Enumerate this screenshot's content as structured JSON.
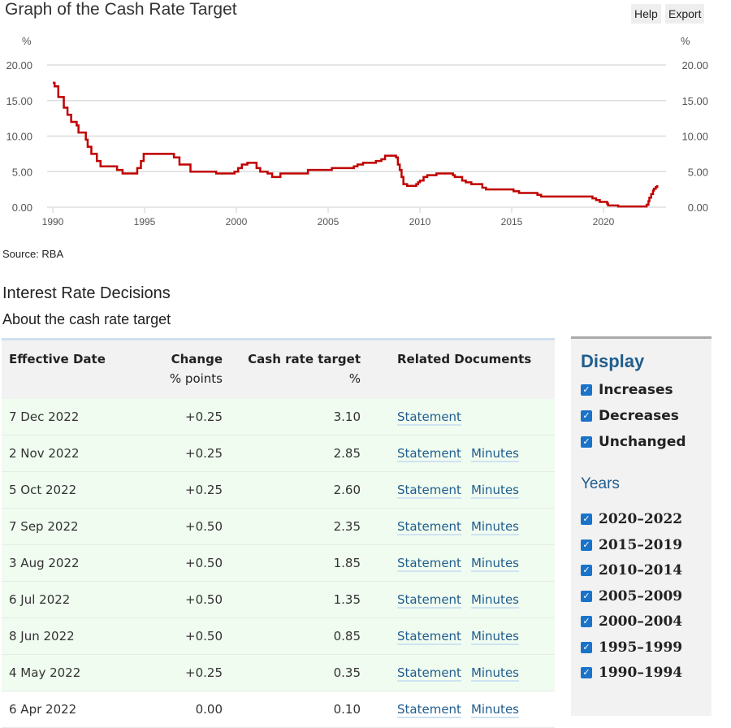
{
  "header": {
    "title": "Graph of the Cash Rate Target",
    "help": "Help",
    "export": "Export"
  },
  "chart_data": {
    "type": "line",
    "title": "Graph of the Cash Rate Target",
    "ylabel_left": "%",
    "ylabel_right": "%",
    "ylim": [
      0,
      20
    ],
    "yticks": [
      "0.00",
      "5.00",
      "10.00",
      "15.00",
      "20.00"
    ],
    "xticks": [
      "1990",
      "1995",
      "2000",
      "2005",
      "2010",
      "2015",
      "2020"
    ],
    "xlim": [
      1990,
      2023
    ],
    "color": "#c00000",
    "grid": "horizontal",
    "step": true,
    "x": [
      1990.0,
      1990.1,
      1990.3,
      1990.6,
      1990.8,
      1991.0,
      1991.3,
      1991.4,
      1991.8,
      1991.9,
      1992.1,
      1992.4,
      1992.6,
      1993.5,
      1993.8,
      1994.6,
      1994.8,
      1994.95,
      1996.6,
      1996.9,
      1997.5,
      1998.9,
      1999.9,
      2000.1,
      2000.3,
      2000.6,
      2001.1,
      2001.3,
      2001.7,
      2001.95,
      2002.4,
      2003.9,
      2005.2,
      2006.4,
      2006.6,
      2006.9,
      2007.6,
      2007.9,
      2008.1,
      2008.7,
      2008.8,
      2008.9,
      2009.0,
      2009.1,
      2009.3,
      2009.8,
      2009.9,
      2010.0,
      2010.2,
      2010.4,
      2010.9,
      2011.8,
      2011.9,
      2012.3,
      2012.5,
      2012.8,
      2013.4,
      2013.6,
      2015.1,
      2015.4,
      2016.4,
      2016.6,
      2019.4,
      2019.6,
      2019.8,
      2020.2,
      2020.25,
      2020.8,
      2022.35,
      2022.45,
      2022.5,
      2022.6,
      2022.7,
      2022.75,
      2022.85,
      2022.93
    ],
    "y": [
      17.5,
      17.0,
      15.5,
      14.0,
      13.0,
      12.0,
      11.5,
      10.5,
      9.5,
      8.5,
      7.5,
      6.5,
      5.75,
      5.25,
      4.75,
      5.5,
      6.5,
      7.5,
      7.0,
      6.0,
      5.0,
      4.75,
      5.0,
      5.5,
      6.0,
      6.25,
      5.5,
      5.0,
      4.75,
      4.25,
      4.75,
      5.25,
      5.5,
      5.75,
      6.0,
      6.25,
      6.5,
      6.75,
      7.25,
      7.0,
      6.0,
      5.25,
      4.25,
      3.25,
      3.0,
      3.25,
      3.5,
      3.75,
      4.25,
      4.5,
      4.75,
      4.5,
      4.25,
      3.75,
      3.5,
      3.25,
      2.75,
      2.5,
      2.25,
      2.0,
      1.75,
      1.5,
      1.25,
      1.0,
      0.75,
      0.5,
      0.25,
      0.1,
      0.35,
      0.85,
      1.35,
      1.85,
      2.35,
      2.6,
      2.85,
      3.1
    ]
  },
  "source": "Source: RBA",
  "section_title": "Interest Rate Decisions",
  "about_link": "About the cash rate target",
  "table": {
    "headers": {
      "date": "Effective Date",
      "change": "Change",
      "change_unit": "% points",
      "rate": "Cash rate target",
      "rate_unit": "%",
      "docs": "Related Documents"
    },
    "rows": [
      {
        "date": "7 Dec 2022",
        "change": "+0.25",
        "rate": "3.10",
        "statement": "Statement",
        "minutes": "",
        "type": "inc"
      },
      {
        "date": "2 Nov 2022",
        "change": "+0.25",
        "rate": "2.85",
        "statement": "Statement",
        "minutes": "Minutes",
        "type": "inc"
      },
      {
        "date": "5 Oct 2022",
        "change": "+0.25",
        "rate": "2.60",
        "statement": "Statement",
        "minutes": "Minutes",
        "type": "inc"
      },
      {
        "date": "7 Sep 2022",
        "change": "+0.50",
        "rate": "2.35",
        "statement": "Statement",
        "minutes": "Minutes",
        "type": "inc"
      },
      {
        "date": "3 Aug 2022",
        "change": "+0.50",
        "rate": "1.85",
        "statement": "Statement",
        "minutes": "Minutes",
        "type": "inc"
      },
      {
        "date": "6 Jul 2022",
        "change": "+0.50",
        "rate": "1.35",
        "statement": "Statement",
        "minutes": "Minutes",
        "type": "inc"
      },
      {
        "date": "8 Jun 2022",
        "change": "+0.50",
        "rate": "0.85",
        "statement": "Statement",
        "minutes": "Minutes",
        "type": "inc"
      },
      {
        "date": "4 May 2022",
        "change": "+0.25",
        "rate": "0.35",
        "statement": "Statement",
        "minutes": "Minutes",
        "type": "inc"
      },
      {
        "date": "6 Apr 2022",
        "change": "0.00",
        "rate": "0.10",
        "statement": "Statement",
        "minutes": "Minutes",
        "type": "unch"
      }
    ]
  },
  "sidebar": {
    "display_title": "Display",
    "display": [
      {
        "label": "Increases",
        "checked": true
      },
      {
        "label": "Decreases",
        "checked": true
      },
      {
        "label": "Unchanged",
        "checked": true
      }
    ],
    "years_title": "Years",
    "years": [
      {
        "label": "2020–2022",
        "checked": true
      },
      {
        "label": "2015–2019",
        "checked": true
      },
      {
        "label": "2010–2014",
        "checked": true
      },
      {
        "label": "2005–2009",
        "checked": true
      },
      {
        "label": "2000–2004",
        "checked": true
      },
      {
        "label": "1995–1999",
        "checked": true
      },
      {
        "label": "1990–1994",
        "checked": true
      }
    ]
  }
}
